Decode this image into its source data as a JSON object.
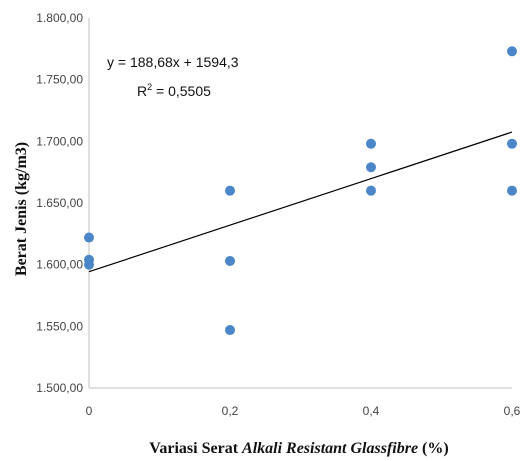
{
  "chart_data": {
    "type": "scatter",
    "xlabel_prefix": "Variasi Serat ",
    "xlabel_italic": "Alkali Resistant Glassfibre",
    "xlabel_suffix": " (%)",
    "ylabel": "Berat Jenis (kg/m3)",
    "x_ticks": [
      "0",
      "0,2",
      "0,4",
      "0,6"
    ],
    "y_ticks": [
      "1.500,00",
      "1.550,00",
      "1.600,00",
      "1.650,00",
      "1.700,00",
      "1.750,00",
      "1.800,00"
    ],
    "xlim": [
      0,
      0.6
    ],
    "ylim": [
      1500,
      1800
    ],
    "grid": false,
    "point_color": "#4a86c8",
    "trendline_color": "#000000",
    "points": [
      {
        "x": 0,
        "y": 1622
      },
      {
        "x": 0,
        "y": 1604
      },
      {
        "x": 0,
        "y": 1600
      },
      {
        "x": 0.2,
        "y": 1660
      },
      {
        "x": 0.2,
        "y": 1603
      },
      {
        "x": 0.2,
        "y": 1547
      },
      {
        "x": 0.4,
        "y": 1698
      },
      {
        "x": 0.4,
        "y": 1679
      },
      {
        "x": 0.4,
        "y": 1660
      },
      {
        "x": 0.6,
        "y": 1773
      },
      {
        "x": 0.6,
        "y": 1698
      },
      {
        "x": 0.6,
        "y": 1660
      }
    ],
    "trendline": {
      "slope": 188.68,
      "intercept": 1594.3,
      "equation": "y = 188,68x + 1594,3",
      "r2_prefix": "R",
      "r2_sup": "2",
      "r2_value": " = 0,5505"
    }
  }
}
